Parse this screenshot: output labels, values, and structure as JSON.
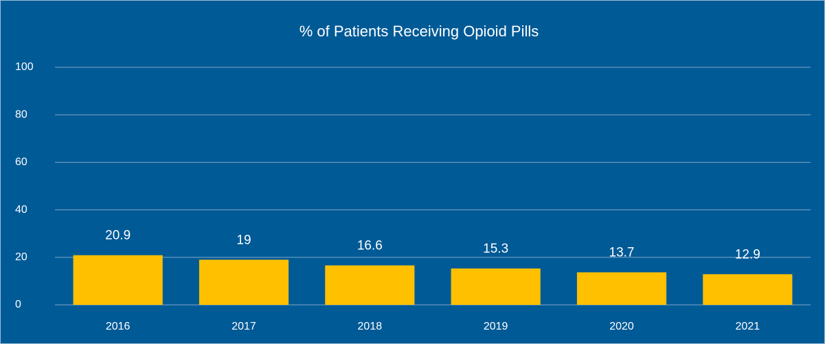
{
  "chart_data": {
    "type": "bar",
    "title": "% of Patients Receiving Opioid Pills",
    "categories": [
      "2016",
      "2017",
      "2018",
      "2019",
      "2020",
      "2021"
    ],
    "values": [
      20.9,
      19,
      16.6,
      15.3,
      13.7,
      12.9
    ],
    "color": "#ffc000",
    "ylim": [
      0,
      100
    ],
    "yticks": [
      0,
      20,
      40,
      60,
      80,
      100
    ],
    "grid": true
  }
}
